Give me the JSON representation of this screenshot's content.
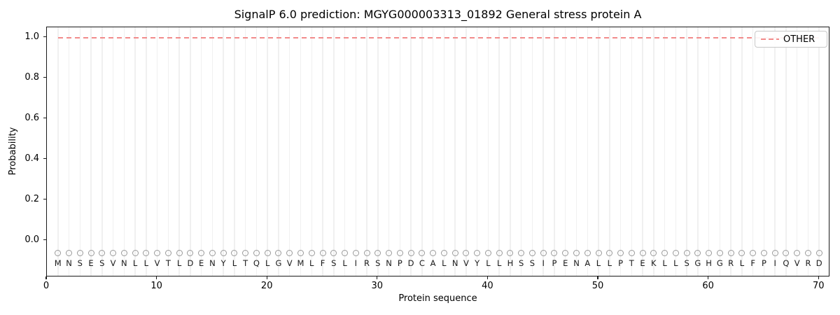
{
  "chart_data": {
    "type": "line",
    "title": "SignalP 6.0 prediction: MGYG000003313_01892 General stress protein A",
    "xlabel": "Protein sequence",
    "ylabel": "Probability",
    "xlim": [
      0,
      71
    ],
    "ylim": [
      -0.18,
      1.05
    ],
    "x_ticks": [
      0,
      10,
      20,
      30,
      40,
      50,
      60,
      70
    ],
    "y_ticks": [
      0.0,
      0.2,
      0.4,
      0.6,
      0.8,
      1.0
    ],
    "grid": "vertical line per residue position",
    "legend": {
      "position": "upper right",
      "entries": [
        {
          "label": "OTHER",
          "color": "#f28b8b",
          "linestyle": "dashed"
        }
      ]
    },
    "series": [
      {
        "name": "OTHER",
        "color": "#f28b8b",
        "linestyle": "dashed",
        "x": [
          1,
          2,
          3,
          4,
          5,
          6,
          7,
          8,
          9,
          10,
          11,
          12,
          13,
          14,
          15,
          16,
          17,
          18,
          19,
          20,
          21,
          22,
          23,
          24,
          25,
          26,
          27,
          28,
          29,
          30,
          31,
          32,
          33,
          34,
          35,
          36,
          37,
          38,
          39,
          40,
          41,
          42,
          43,
          44,
          45,
          46,
          47,
          48,
          49,
          50,
          51,
          52,
          53,
          54,
          55,
          56,
          57,
          58,
          59,
          60,
          61,
          62,
          63,
          64,
          65,
          66,
          67,
          68,
          69,
          70
        ],
        "y": [
          1.0,
          1.0,
          1.0,
          1.0,
          1.0,
          1.0,
          1.0,
          1.0,
          1.0,
          1.0,
          1.0,
          1.0,
          1.0,
          1.0,
          1.0,
          1.0,
          1.0,
          1.0,
          1.0,
          1.0,
          1.0,
          1.0,
          1.0,
          1.0,
          1.0,
          1.0,
          1.0,
          1.0,
          1.0,
          1.0,
          1.0,
          1.0,
          1.0,
          1.0,
          1.0,
          1.0,
          1.0,
          1.0,
          1.0,
          1.0,
          1.0,
          1.0,
          1.0,
          1.0,
          1.0,
          1.0,
          1.0,
          1.0,
          1.0,
          1.0,
          1.0,
          1.0,
          1.0,
          1.0,
          1.0,
          1.0,
          1.0,
          1.0,
          1.0,
          1.0,
          1.0,
          1.0,
          1.0,
          1.0,
          1.0,
          1.0,
          1.0,
          1.0,
          1.0,
          1.0
        ]
      }
    ],
    "sequence": {
      "residues": "MNSESVNLLVTLDENYLTQLGVMLFSLIRSNPDCALNVYLLHSSIPENALLPTEKLLSGHGRLFPIQVRD",
      "marker": "open-circle",
      "marker_y": -0.06,
      "marker_color": "#9a9a9a",
      "letter_color": "#1a1a1a"
    },
    "colors": {
      "background": "#ffffff",
      "gridline": "#f0f0f0",
      "spine": "#1a1a1a",
      "other_line": "#f28b8b"
    }
  }
}
